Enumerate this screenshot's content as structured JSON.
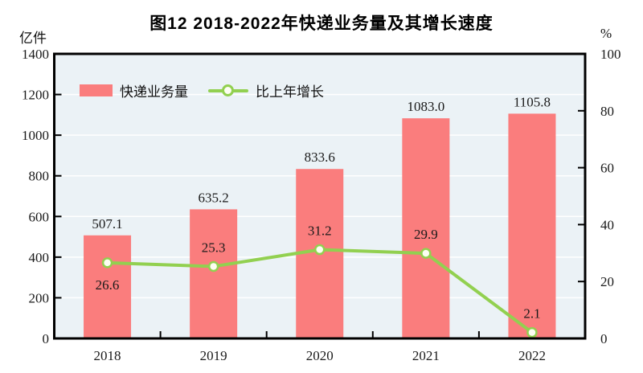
{
  "title": "图12  2018-2022年快递业务量及其增长速度",
  "legend": {
    "bar_label": "快递业务量",
    "line_label": "比上年增长"
  },
  "colors": {
    "bar": "#FA7D7D",
    "line": "#92D050",
    "marker_fill": "#FDFEF3",
    "plot_bg": "#EBF2F6",
    "grid": "#FFFFFF",
    "axis": "#000000",
    "text": "#1A1A1A",
    "page_bg": "#FFFFFF"
  },
  "chart_data": {
    "type": "bar",
    "combo": "bar+line",
    "title": "图12  2018-2022年快递业务量及其增长速度",
    "categories": [
      "2018",
      "2019",
      "2020",
      "2021",
      "2022"
    ],
    "series": [
      {
        "name": "快递业务量",
        "type": "bar",
        "axis": "left",
        "unit": "亿件",
        "values": [
          507.1,
          635.2,
          833.6,
          1083.0,
          1105.8
        ],
        "labels": [
          "507.1",
          "635.2",
          "833.6",
          "1083.0",
          "1105.8"
        ]
      },
      {
        "name": "比上年增长",
        "type": "line",
        "axis": "right",
        "unit": "%",
        "values": [
          26.6,
          25.3,
          31.2,
          29.9,
          2.1
        ],
        "labels": [
          "26.6",
          "25.3",
          "31.2",
          "29.9",
          "2.1"
        ]
      }
    ],
    "left_axis": {
      "unit": "亿件",
      "min": 0,
      "max": 1400,
      "step": 200,
      "tick_labels": [
        "0",
        "200",
        "400",
        "600",
        "800",
        "1000",
        "1200",
        "1400"
      ]
    },
    "right_axis": {
      "unit": "%",
      "min": 0,
      "max": 100,
      "step": 20,
      "tick_labels": [
        "0",
        "20",
        "40",
        "60",
        "80",
        "100"
      ]
    },
    "grid": true,
    "legend_position": "top-left-inside",
    "layout_hints": {
      "line_label_sides": [
        "below",
        "above",
        "above",
        "above",
        "above"
      ]
    }
  }
}
